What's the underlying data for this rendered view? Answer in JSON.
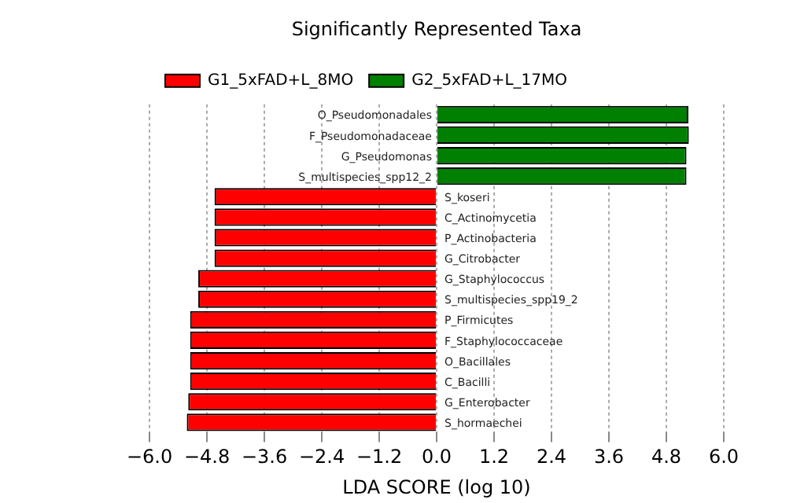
{
  "chart_data": {
    "type": "bar",
    "orientation": "horizontal",
    "title": "Significantly Represented Taxa",
    "xlabel": "LDA SCORE (log 10)",
    "categories": [
      "O_Pseudomonadales",
      "F_Pseudomonadaceae",
      "G_Pseudomonas",
      "S_multispecies_spp12_2",
      "S_koseri",
      "C_Actinomycetia",
      "P_Actinobacteria",
      "G_Citrobacter",
      "G_Staphylococcus",
      "S_multispecies_spp19_2",
      "P_Firmicutes",
      "F_Staphylococcaceae",
      "O_Bacillales",
      "C_Bacilli",
      "G_Enterobacter",
      "S_hormaechei"
    ],
    "series": [
      {
        "name": "G1_5xFAD+L_8MO",
        "color": "#ff0000",
        "values": [
          null,
          null,
          null,
          null,
          -4.64,
          -4.64,
          -4.64,
          -4.64,
          -4.98,
          -4.98,
          -5.15,
          -5.15,
          -5.15,
          -5.15,
          -5.19,
          -5.22
        ]
      },
      {
        "name": "G2_5xFAD+L_17MO",
        "color": "#008000",
        "values": [
          5.26,
          5.27,
          5.22,
          5.22,
          null,
          null,
          null,
          null,
          null,
          null,
          null,
          null,
          null,
          null,
          null,
          null
        ]
      }
    ],
    "xlim": [
      -6,
      6
    ],
    "xticks": [
      {
        "value": -6,
        "label": "−6.0"
      },
      {
        "value": -4.8,
        "label": "−4.8"
      },
      {
        "value": -3.6,
        "label": "−3.6"
      },
      {
        "value": -2.4,
        "label": "−2.4"
      },
      {
        "value": -1.2,
        "label": "−1.2"
      },
      {
        "value": 0,
        "label": "0.0"
      },
      {
        "value": 1.2,
        "label": "1.2"
      },
      {
        "value": 2.4,
        "label": "2.4"
      },
      {
        "value": 3.6,
        "label": "3.6"
      },
      {
        "value": 4.8,
        "label": "4.8"
      },
      {
        "value": 6,
        "label": "6.0"
      }
    ],
    "grid": "x",
    "legend": "top",
    "tick_labels": "x"
  }
}
